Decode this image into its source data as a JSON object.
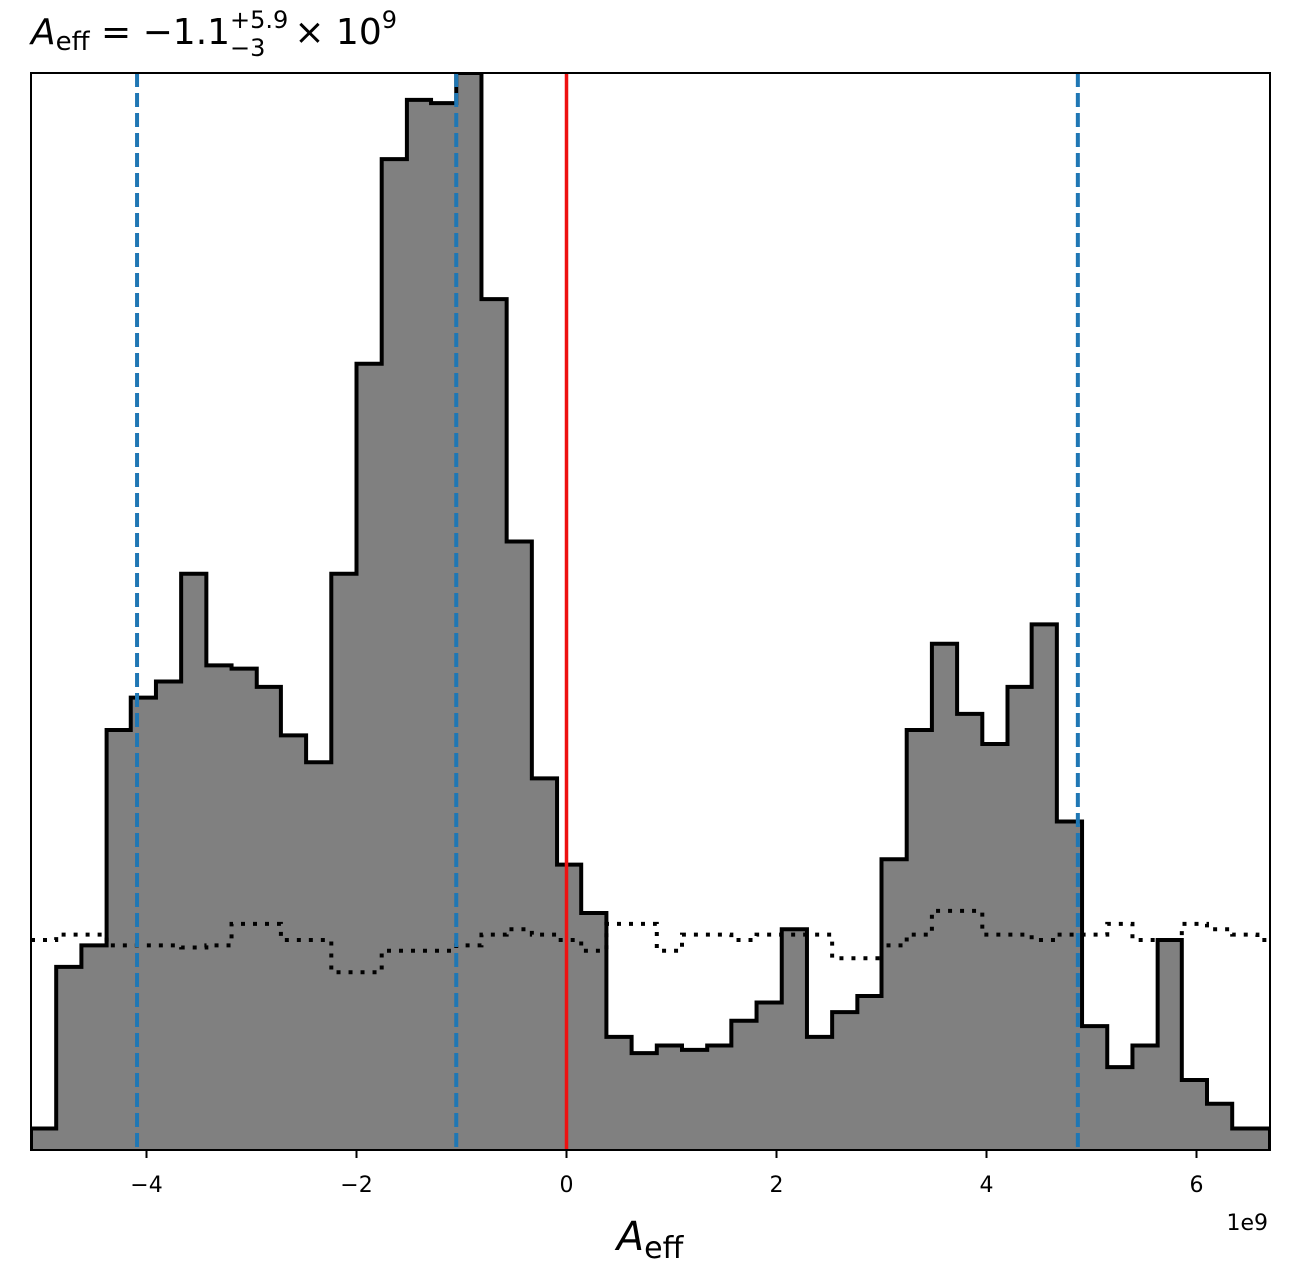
{
  "chart_data": {
    "type": "histogram",
    "title": {
      "symbol": "A",
      "symbol_sub": "eff",
      "median": "−1.1",
      "upper_err": "+5.9",
      "lower_err": "−3",
      "multiplier": "× 10",
      "exponent": "9"
    },
    "xlabel": {
      "symbol": "A",
      "symbol_sub": "eff"
    },
    "x_offset_label": "1e9",
    "x_scale": 1000000000.0,
    "xlim": [
      -5.1,
      6.7
    ],
    "ylim": [
      0,
      1.0
    ],
    "xticks": [
      -4,
      -2,
      0,
      2,
      4,
      6
    ],
    "xtick_labels": [
      "−4",
      "−2",
      "0",
      "2",
      "4",
      "6"
    ],
    "colors": {
      "fill": "#808080",
      "edge": "#000000",
      "quantile_lines": "#1f77b4",
      "injected_value": "#ee1111"
    },
    "posterior": {
      "bin_edges": [
        -5.1,
        -4.86,
        -4.62,
        -4.38,
        -4.15,
        -3.91,
        -3.67,
        -3.43,
        -3.19,
        -2.95,
        -2.72,
        -2.48,
        -2.24,
        -2.0,
        -1.76,
        -1.52,
        -1.29,
        -1.05,
        -0.81,
        -0.57,
        -0.33,
        -0.09,
        0.14,
        0.38,
        0.62,
        0.86,
        1.1,
        1.34,
        1.57,
        1.81,
        2.05,
        2.29,
        2.53,
        2.77,
        3.0,
        3.24,
        3.48,
        3.72,
        3.96,
        4.2,
        4.43,
        4.67,
        4.91,
        5.15,
        5.39,
        5.63,
        5.86,
        6.1,
        6.34,
        6.58,
        6.7
      ],
      "counts": [
        0.02,
        0.17,
        0.19,
        0.39,
        0.42,
        0.435,
        0.535,
        0.45,
        0.447,
        0.43,
        0.385,
        0.36,
        0.535,
        0.73,
        0.92,
        0.975,
        0.972,
        1.0,
        0.79,
        0.565,
        0.345,
        0.265,
        0.22,
        0.105,
        0.09,
        0.097,
        0.093,
        0.097,
        0.12,
        0.137,
        0.205,
        0.105,
        0.128,
        0.143,
        0.27,
        0.39,
        0.47,
        0.405,
        0.377,
        0.43,
        0.488,
        0.305,
        0.115,
        0.077,
        0.097,
        0.195,
        0.065,
        0.043,
        0.02,
        0.02
      ]
    },
    "prior": {
      "bin_edges": [
        -5.1,
        -4.86,
        -4.62,
        -4.38,
        -4.15,
        -3.91,
        -3.67,
        -3.43,
        -3.19,
        -2.95,
        -2.72,
        -2.48,
        -2.24,
        -2.0,
        -1.76,
        -1.52,
        -1.29,
        -1.05,
        -0.81,
        -0.57,
        -0.33,
        -0.09,
        0.14,
        0.38,
        0.62,
        0.86,
        1.1,
        1.34,
        1.57,
        1.81,
        2.05,
        2.29,
        2.53,
        2.77,
        3.0,
        3.24,
        3.48,
        3.72,
        3.96,
        4.2,
        4.43,
        4.67,
        4.91,
        5.15,
        5.39,
        5.63,
        5.86,
        6.1,
        6.34,
        6.58,
        6.7
      ],
      "counts": [
        0.195,
        0.2,
        0.2,
        0.19,
        0.19,
        0.19,
        0.188,
        0.19,
        0.21,
        0.21,
        0.195,
        0.195,
        0.165,
        0.165,
        0.185,
        0.185,
        0.185,
        0.19,
        0.2,
        0.205,
        0.2,
        0.195,
        0.185,
        0.21,
        0.21,
        0.185,
        0.2,
        0.2,
        0.195,
        0.2,
        0.2,
        0.2,
        0.178,
        0.178,
        0.19,
        0.2,
        0.222,
        0.222,
        0.2,
        0.2,
        0.195,
        0.2,
        0.2,
        0.21,
        0.195,
        0.195,
        0.21,
        0.205,
        0.2,
        0.195
      ]
    },
    "quantile_lines": [
      -4.09,
      -1.05,
      4.87
    ],
    "injected_value": 0.0
  }
}
